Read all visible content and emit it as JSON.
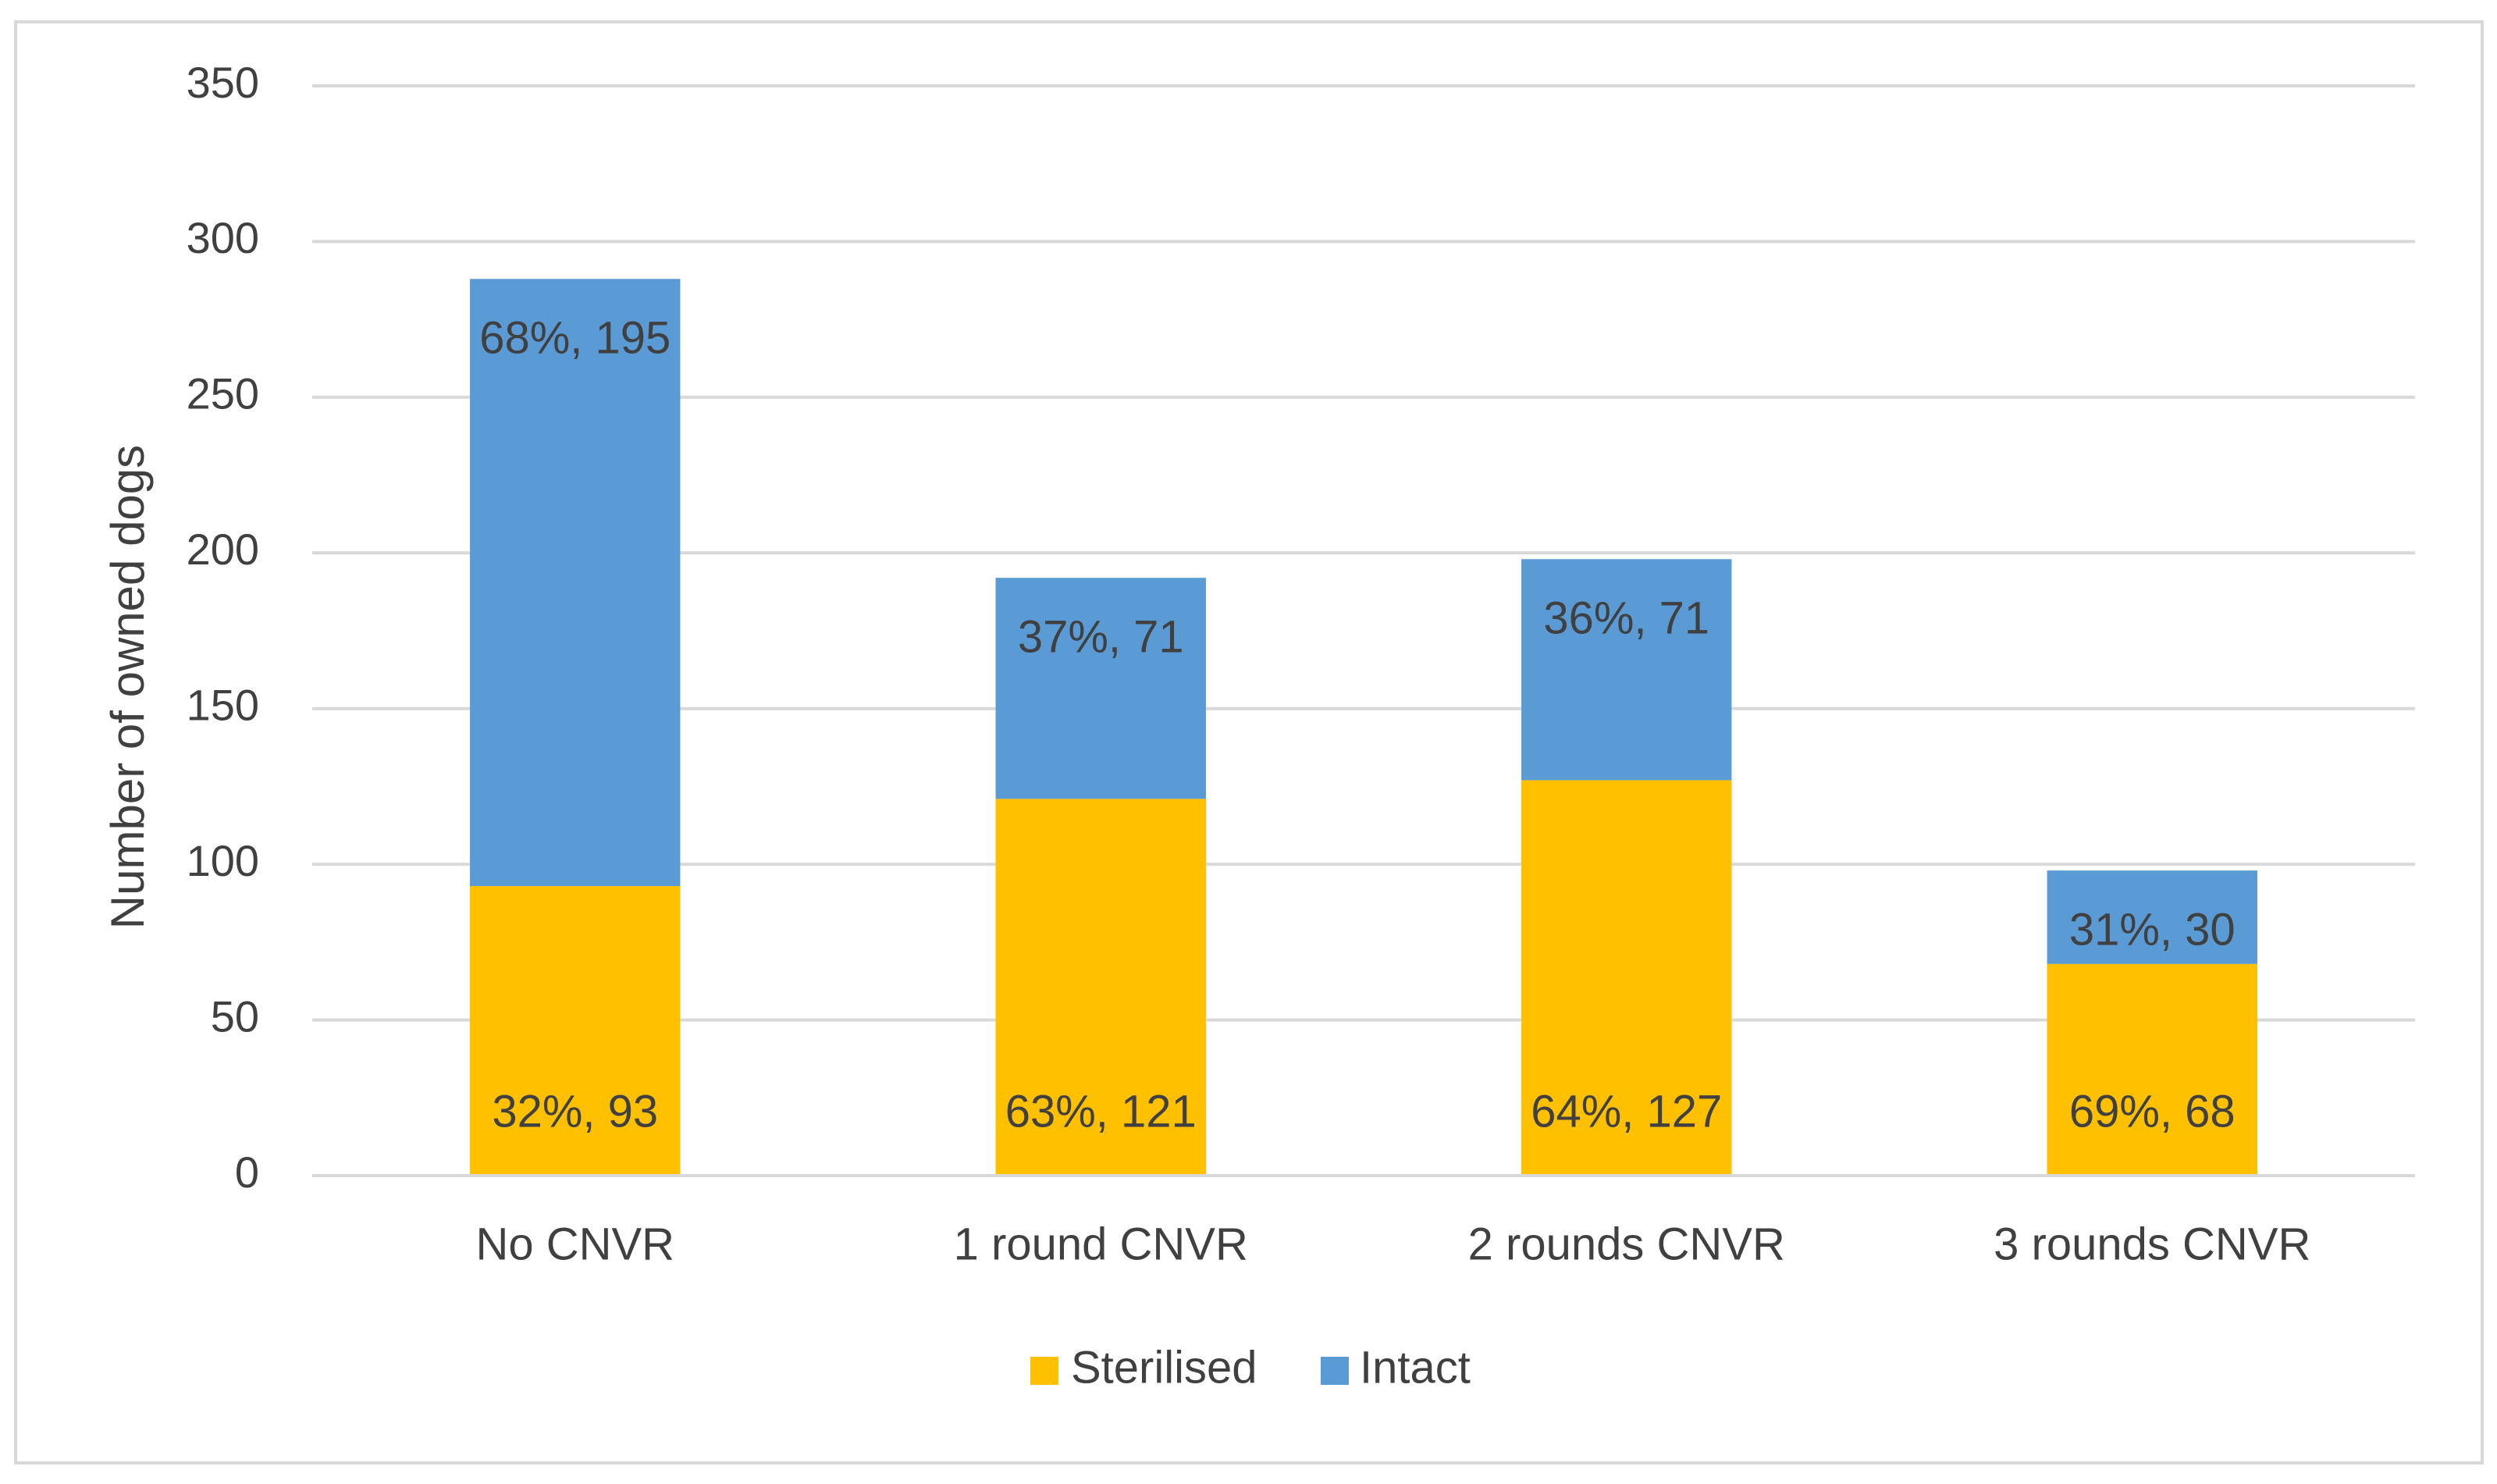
{
  "chart_data": {
    "type": "bar",
    "stacked": true,
    "title": "",
    "xlabel": "",
    "ylabel": "Number of owned dogs",
    "ylim": [
      0,
      350
    ],
    "yticks": [
      0,
      50,
      100,
      150,
      200,
      250,
      300,
      350
    ],
    "grid": true,
    "legend_position": "bottom",
    "categories": [
      "No CNVR",
      "1 round CNVR",
      "2 rounds CNVR",
      "3 rounds CNVR"
    ],
    "series": [
      {
        "name": "Sterilised",
        "color": "#FFC000",
        "values": [
          93,
          121,
          127,
          68
        ],
        "labels": [
          "32%, 93",
          "63%, 121",
          "64%, 127",
          "69%, 68"
        ]
      },
      {
        "name": "Intact",
        "color": "#5B9BD5",
        "values": [
          195,
          71,
          71,
          30
        ],
        "labels": [
          "68%, 195",
          "37%, 71",
          "36%, 71",
          "31%, 30"
        ]
      }
    ]
  }
}
